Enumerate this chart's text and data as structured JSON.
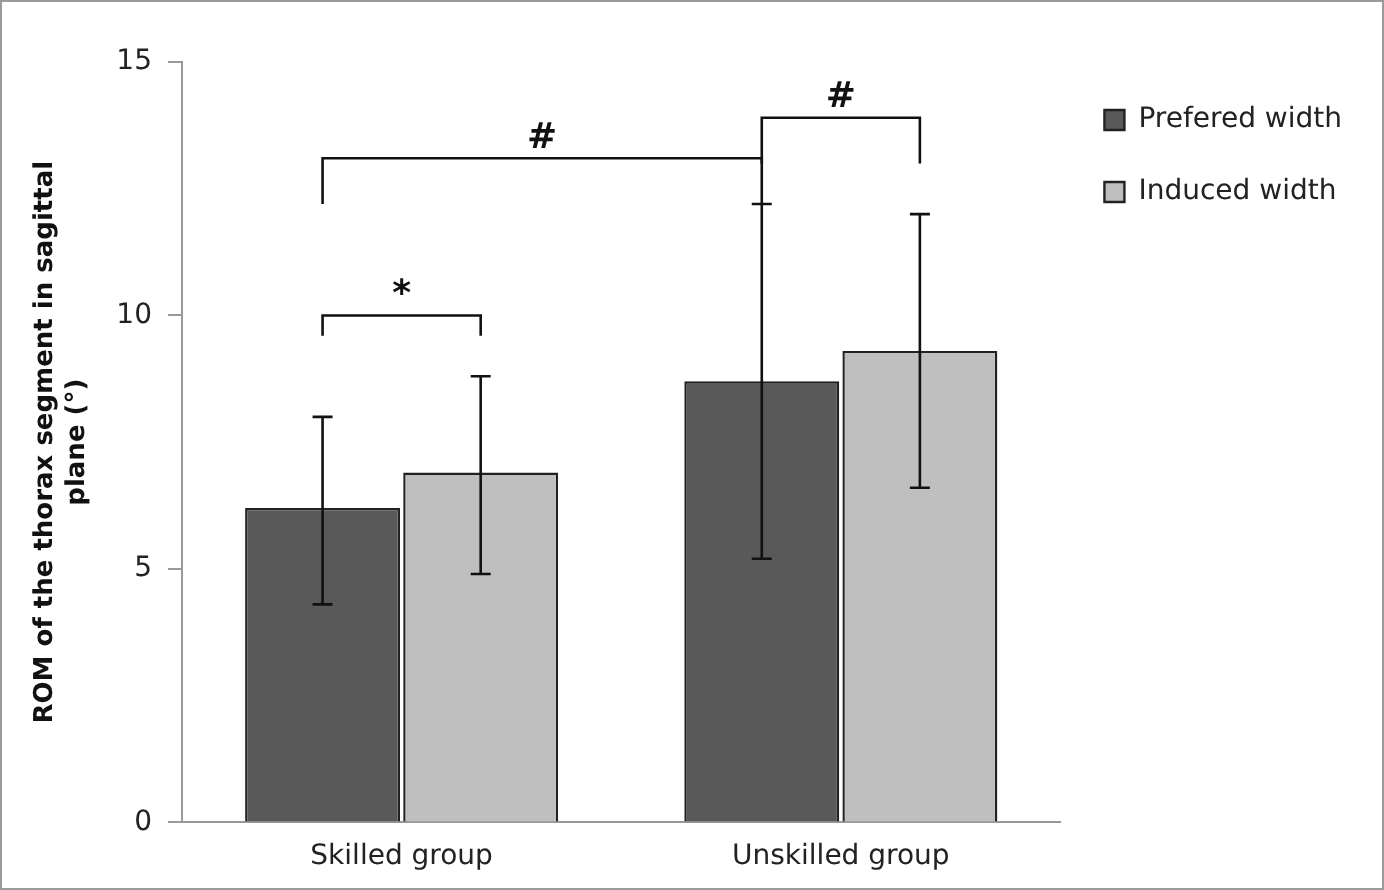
{
  "chart_data": {
    "type": "bar",
    "ylabel": "ROM of the thorax segment in sagittal plane (°)",
    "categories": [
      "Skilled group",
      "Unskilled group"
    ],
    "series": [
      {
        "name": "Prefered width",
        "color": "#595959",
        "values": [
          6.2,
          8.7
        ],
        "errors": [
          [
            4.3,
            8.0
          ],
          [
            5.2,
            12.2
          ]
        ]
      },
      {
        "name": "Induced width",
        "color": "#bfbfbf",
        "values": [
          6.9,
          9.3
        ],
        "errors": [
          [
            4.9,
            8.8
          ],
          [
            6.6,
            12.0
          ]
        ]
      }
    ],
    "ylim": [
      0,
      15
    ],
    "yticks": [
      0,
      5,
      10,
      15
    ],
    "grid": false,
    "legend": "top right",
    "annotations": [
      "*",
      "#",
      "#"
    ]
  }
}
